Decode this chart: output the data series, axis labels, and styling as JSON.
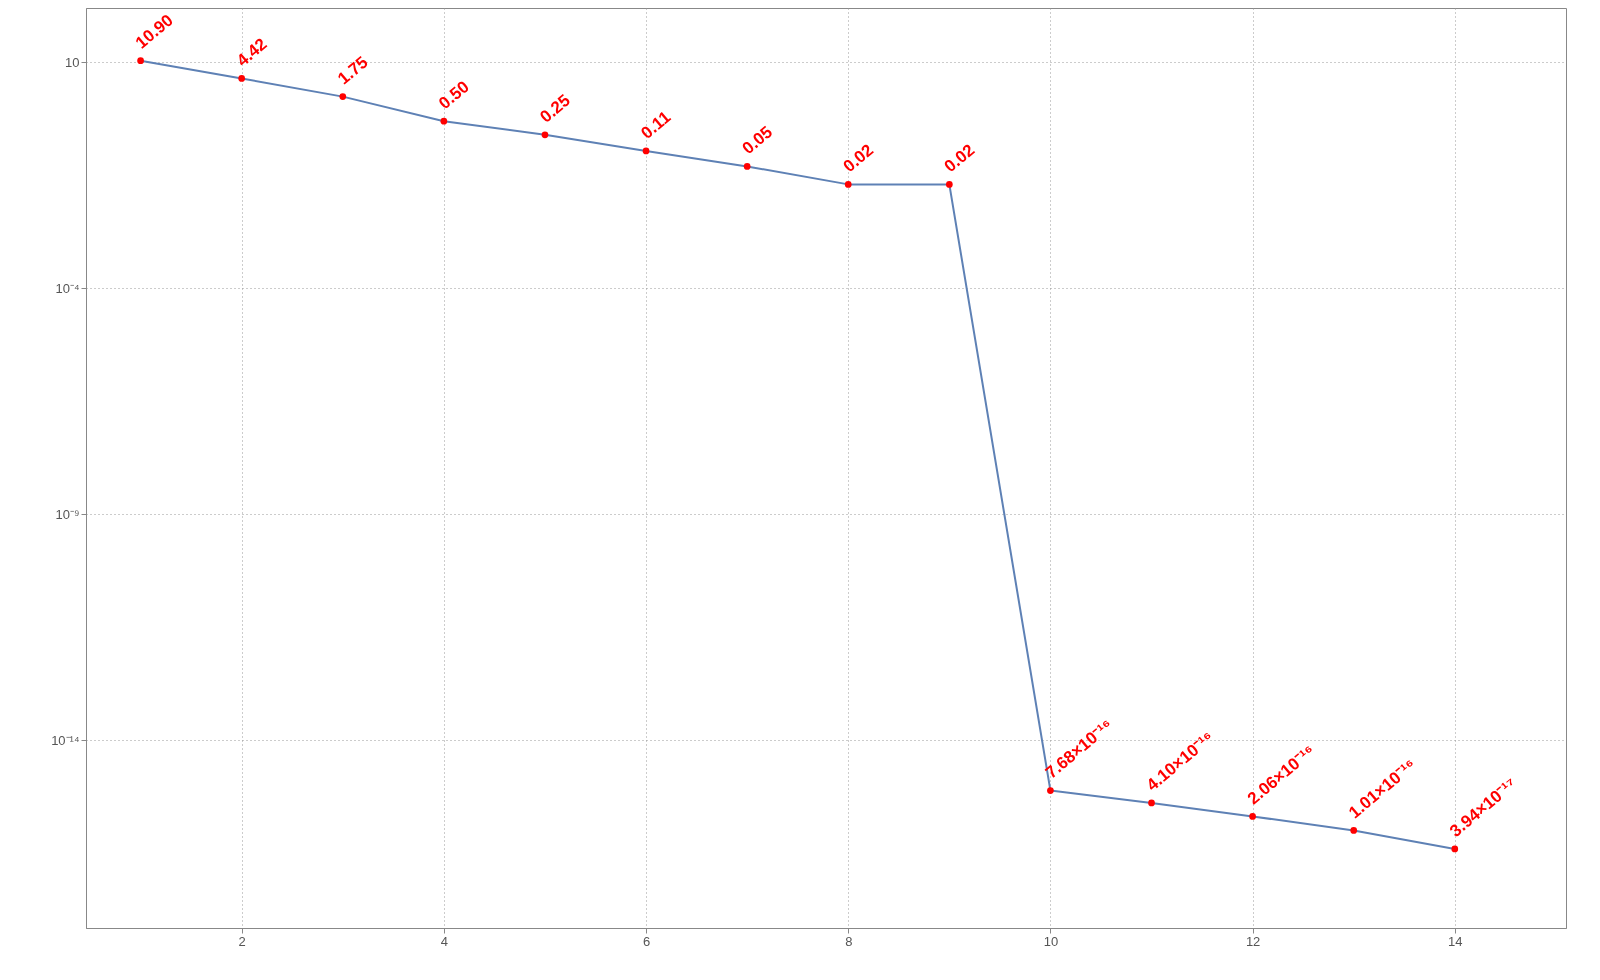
{
  "chart_data": {
    "type": "line",
    "x": [
      1,
      2,
      3,
      4,
      5,
      6,
      7,
      8,
      9,
      10,
      11,
      12,
      13,
      14
    ],
    "series": [
      {
        "color": "#5e81b5",
        "values": [
          10.9,
          4.42,
          1.75,
          0.5,
          0.25,
          0.11,
          0.05,
          0.02,
          0.02,
          7.68e-16,
          4.1e-16,
          2.06e-16,
          1.01e-16,
          3.94e-17
        ],
        "value_labels": [
          "10.90",
          "4.42",
          "1.75",
          "0.50",
          "0.25",
          "0.11",
          "0.05",
          "0.02",
          "0.02",
          "7.68×10⁻¹⁶",
          "4.10×10⁻¹⁶",
          "2.06×10⁻¹⁶",
          "1.01×10⁻¹⁶",
          "3.94×10⁻¹⁷"
        ]
      }
    ],
    "log": true,
    "xlim": [
      0.46,
      15.1
    ],
    "xticks": [
      2,
      4,
      6,
      8,
      10,
      12,
      14
    ],
    "ylim": [
      7e-19,
      160
    ],
    "yticks": [
      10,
      {
        "value": 0.0001,
        "label": "10⁻⁴"
      },
      {
        "value": 1e-09,
        "label": "10⁻⁹"
      },
      {
        "value": 1e-14,
        "label": "10⁻¹⁴"
      }
    ],
    "grid": true,
    "marker": "circle",
    "line_style": "solid"
  }
}
